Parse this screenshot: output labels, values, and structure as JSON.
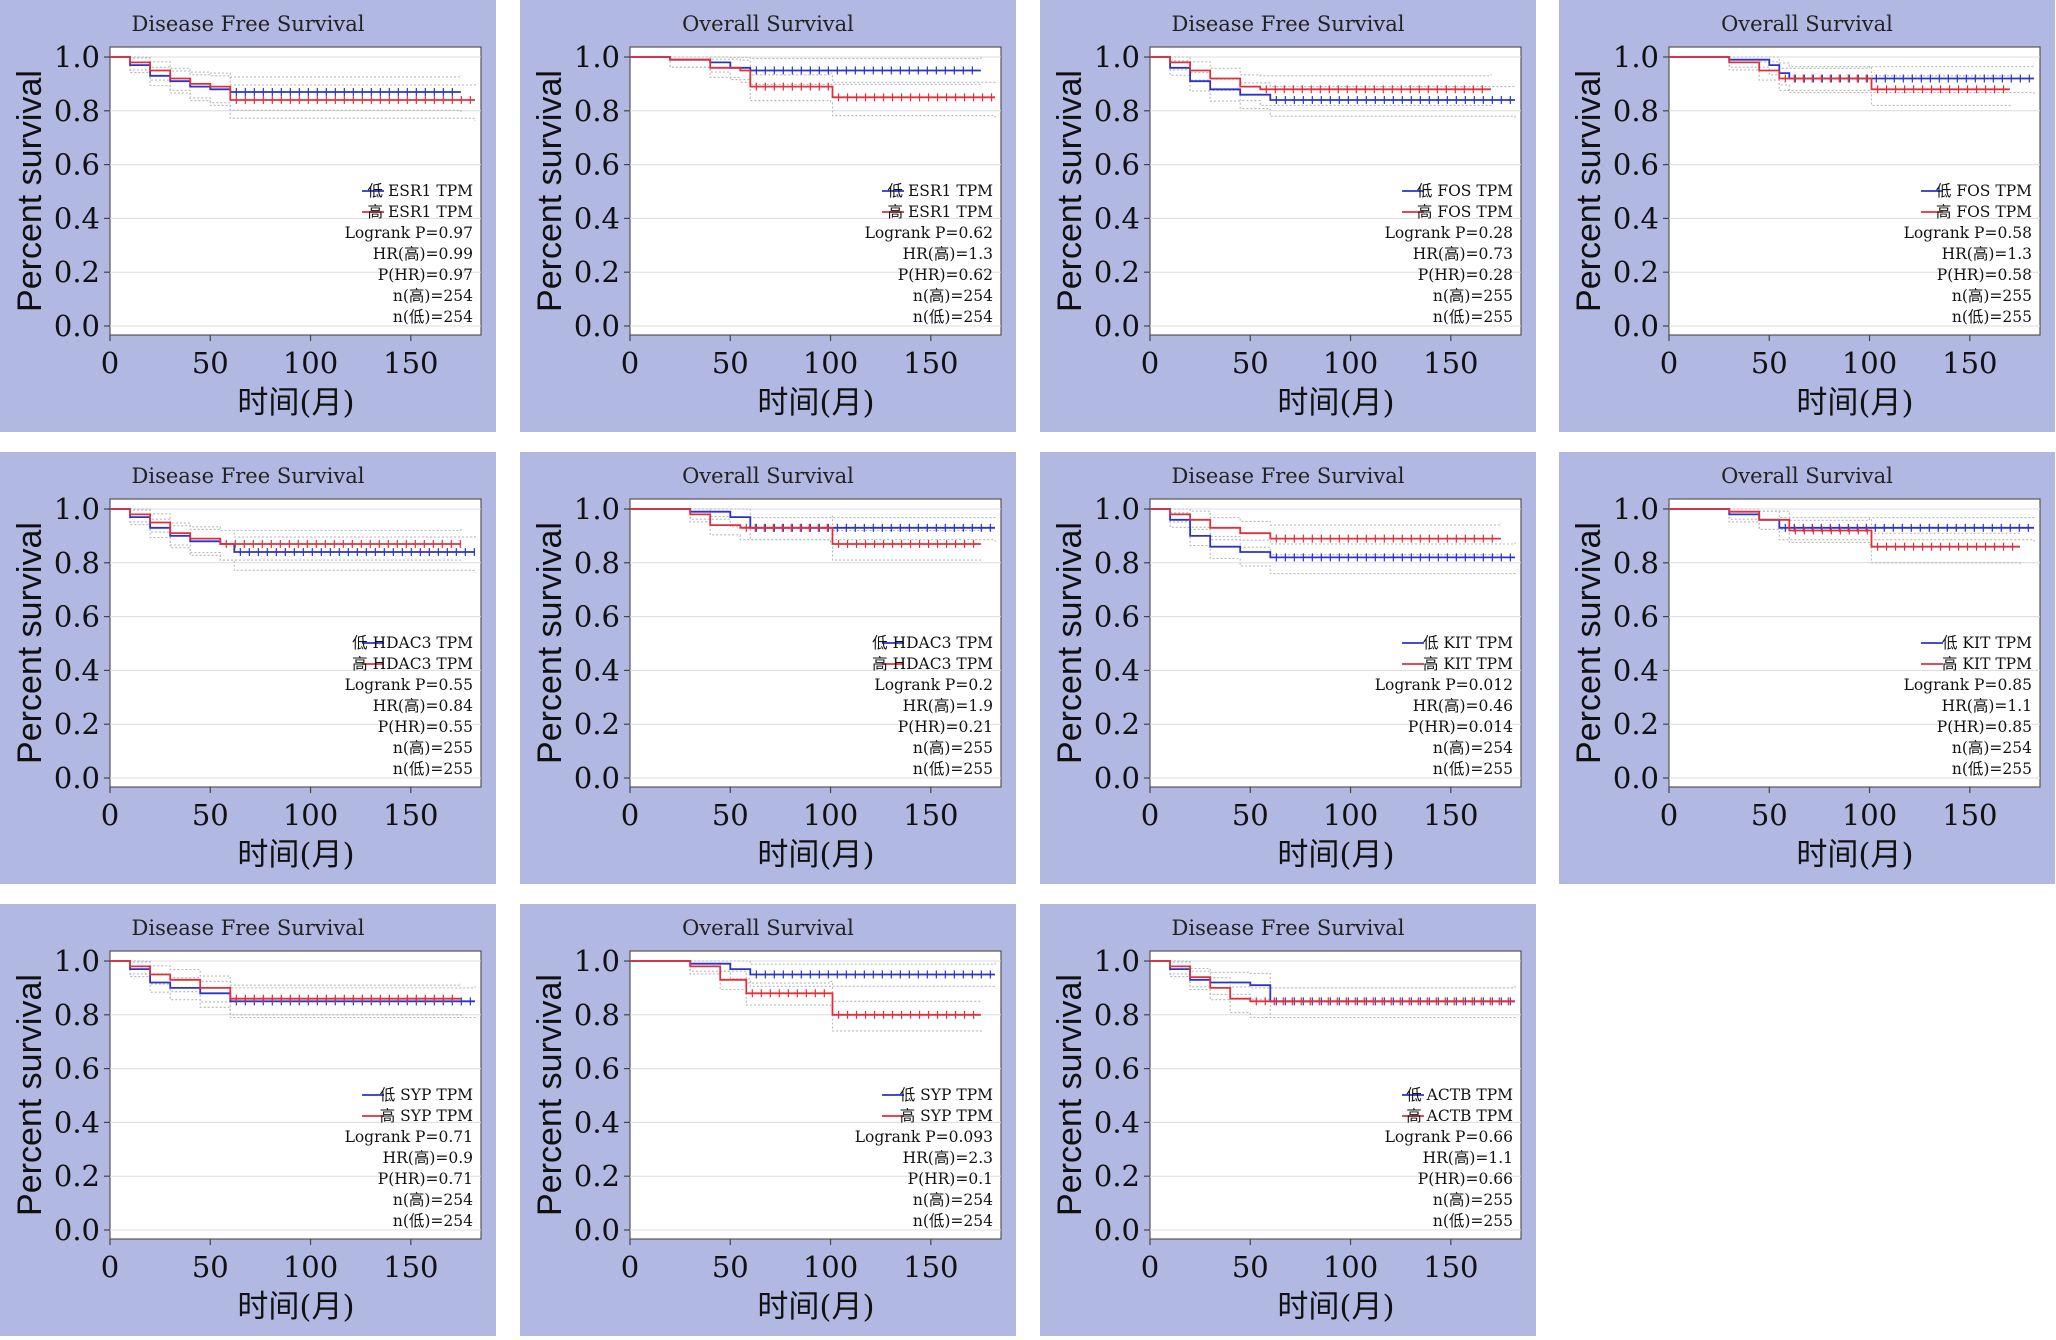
{
  "colors": {
    "low": "#2b34c8",
    "high": "#e0303c",
    "ci": "#b8b8b8",
    "grid": "#dcdcdc",
    "panel_bg": "#b1b8e2"
  },
  "chart_data": [
    {
      "type": "line",
      "title": "Disease Free Survival",
      "ylabel": "Percent survival",
      "xlabel": "时间(月)",
      "xlim": [
        0,
        185
      ],
      "ylim": [
        0,
        1
      ],
      "xticks": [
        "0",
        "50",
        "100",
        "150"
      ],
      "yticks": [
        "0.0",
        "0.2",
        "0.4",
        "0.6",
        "0.8",
        "1.0"
      ],
      "series": [
        {
          "name": "低 ESR1 TPM",
          "values": [
            [
              0,
              1.0
            ],
            [
              10,
              0.97
            ],
            [
              20,
              0.93
            ],
            [
              30,
              0.91
            ],
            [
              40,
              0.89
            ],
            [
              50,
              0.88
            ],
            [
              60,
              0.87
            ],
            [
              175,
              0.87
            ]
          ]
        },
        {
          "name": "高 ESR1 TPM",
          "values": [
            [
              0,
              1.0
            ],
            [
              10,
              0.98
            ],
            [
              20,
              0.95
            ],
            [
              30,
              0.92
            ],
            [
              40,
              0.9
            ],
            [
              50,
              0.89
            ],
            [
              60,
              0.84
            ],
            [
              182,
              0.84
            ]
          ]
        }
      ],
      "stats": [
        "Logrank P=0.97",
        "HR(高)=0.99",
        "P(HR)=0.97",
        "n(高)=254",
        "n(低)=254"
      ]
    },
    {
      "type": "line",
      "title": "Overall Survival",
      "ylabel": "Percent survival",
      "xlabel": "时间(月)",
      "xlim": [
        0,
        185
      ],
      "ylim": [
        0,
        1
      ],
      "xticks": [
        "0",
        "50",
        "100",
        "150"
      ],
      "yticks": [
        "0.0",
        "0.2",
        "0.4",
        "0.6",
        "0.8",
        "1.0"
      ],
      "series": [
        {
          "name": "低 ESR1 TPM",
          "values": [
            [
              0,
              1.0
            ],
            [
              20,
              0.99
            ],
            [
              40,
              0.98
            ],
            [
              50,
              0.96
            ],
            [
              60,
              0.95
            ],
            [
              175,
              0.95
            ]
          ]
        },
        {
          "name": "高 ESR1 TPM",
          "values": [
            [
              0,
              1.0
            ],
            [
              20,
              0.99
            ],
            [
              40,
              0.96
            ],
            [
              55,
              0.95
            ],
            [
              60,
              0.89
            ],
            [
              100,
              0.89
            ],
            [
              101,
              0.85
            ],
            [
              182,
              0.85
            ]
          ]
        }
      ],
      "stats": [
        "Logrank P=0.62",
        "HR(高)=1.3",
        "P(HR)=0.62",
        "n(高)=254",
        "n(低)=254"
      ]
    },
    {
      "type": "line",
      "title": "Disease Free Survival",
      "ylabel": "Percent survival",
      "xlabel": "时间(月)",
      "xlim": [
        0,
        185
      ],
      "ylim": [
        0,
        1
      ],
      "xticks": [
        "0",
        "50",
        "100",
        "150"
      ],
      "yticks": [
        "0.0",
        "0.2",
        "0.4",
        "0.6",
        "0.8",
        "1.0"
      ],
      "series": [
        {
          "name": "低 FOS TPM",
          "values": [
            [
              0,
              1.0
            ],
            [
              10,
              0.96
            ],
            [
              20,
              0.91
            ],
            [
              30,
              0.88
            ],
            [
              45,
              0.86
            ],
            [
              60,
              0.84
            ],
            [
              182,
              0.84
            ]
          ]
        },
        {
          "name": "高 FOS TPM",
          "values": [
            [
              0,
              1.0
            ],
            [
              10,
              0.98
            ],
            [
              20,
              0.95
            ],
            [
              30,
              0.92
            ],
            [
              45,
              0.89
            ],
            [
              55,
              0.88
            ],
            [
              170,
              0.88
            ]
          ]
        }
      ],
      "stats": [
        "Logrank P=0.28",
        "HR(高)=0.73",
        "P(HR)=0.28",
        "n(高)=255",
        "n(低)=255"
      ]
    },
    {
      "type": "line",
      "title": "Overall Survival",
      "ylabel": "Percent survival",
      "xlabel": "时间(月)",
      "xlim": [
        0,
        185
      ],
      "ylim": [
        0,
        1
      ],
      "xticks": [
        "0",
        "50",
        "100",
        "150"
      ],
      "yticks": [
        "0.0",
        "0.2",
        "0.4",
        "0.6",
        "0.8",
        "1.0"
      ],
      "series": [
        {
          "name": "低 FOS TPM",
          "values": [
            [
              0,
              1.0
            ],
            [
              30,
              0.99
            ],
            [
              50,
              0.97
            ],
            [
              55,
              0.94
            ],
            [
              60,
              0.92
            ],
            [
              182,
              0.92
            ]
          ]
        },
        {
          "name": "高 FOS TPM",
          "values": [
            [
              0,
              1.0
            ],
            [
              30,
              0.98
            ],
            [
              45,
              0.95
            ],
            [
              55,
              0.92
            ],
            [
              100,
              0.92
            ],
            [
              101,
              0.88
            ],
            [
              170,
              0.88
            ]
          ]
        }
      ],
      "stats": [
        "Logrank P=0.58",
        "HR(高)=1.3",
        "P(HR)=0.58",
        "n(高)=255",
        "n(低)=255"
      ]
    },
    {
      "type": "line",
      "title": "Disease Free Survival",
      "ylabel": "Percent survival",
      "xlabel": "时间(月)",
      "xlim": [
        0,
        185
      ],
      "ylim": [
        0,
        1
      ],
      "xticks": [
        "0",
        "50",
        "100",
        "150"
      ],
      "yticks": [
        "0.0",
        "0.2",
        "0.4",
        "0.6",
        "0.8",
        "1.0"
      ],
      "series": [
        {
          "name": "低 HDAC3 TPM",
          "values": [
            [
              0,
              1.0
            ],
            [
              10,
              0.97
            ],
            [
              20,
              0.93
            ],
            [
              30,
              0.9
            ],
            [
              40,
              0.88
            ],
            [
              55,
              0.87
            ],
            [
              62,
              0.84
            ],
            [
              182,
              0.84
            ]
          ]
        },
        {
          "name": "高 HDAC3 TPM",
          "values": [
            [
              0,
              1.0
            ],
            [
              10,
              0.98
            ],
            [
              20,
              0.95
            ],
            [
              30,
              0.91
            ],
            [
              40,
              0.89
            ],
            [
              55,
              0.87
            ],
            [
              175,
              0.87
            ]
          ]
        }
      ],
      "stats": [
        "Logrank P=0.55",
        "HR(高)=0.84",
        "P(HR)=0.55",
        "n(高)=255",
        "n(低)=255"
      ]
    },
    {
      "type": "line",
      "title": "Overall Survival",
      "ylabel": "Percent survival",
      "xlabel": "时间(月)",
      "xlim": [
        0,
        185
      ],
      "ylim": [
        0,
        1
      ],
      "xticks": [
        "0",
        "50",
        "100",
        "150"
      ],
      "yticks": [
        "0.0",
        "0.2",
        "0.4",
        "0.6",
        "0.8",
        "1.0"
      ],
      "series": [
        {
          "name": "低 HDAC3 TPM",
          "values": [
            [
              0,
              1.0
            ],
            [
              30,
              0.99
            ],
            [
              50,
              0.97
            ],
            [
              60,
              0.93
            ],
            [
              182,
              0.93
            ]
          ]
        },
        {
          "name": "高 HDAC3 TPM",
          "values": [
            [
              0,
              1.0
            ],
            [
              30,
              0.98
            ],
            [
              40,
              0.94
            ],
            [
              55,
              0.93
            ],
            [
              100,
              0.93
            ],
            [
              101,
              0.87
            ],
            [
              175,
              0.87
            ]
          ]
        }
      ],
      "stats": [
        "Logrank P=0.2",
        "HR(高)=1.9",
        "P(HR)=0.21",
        "n(高)=255",
        "n(低)=255"
      ]
    },
    {
      "type": "line",
      "title": "Disease Free Survival",
      "ylabel": "Percent survival",
      "xlabel": "时间(月)",
      "xlim": [
        0,
        185
      ],
      "ylim": [
        0,
        1
      ],
      "xticks": [
        "0",
        "50",
        "100",
        "150"
      ],
      "yticks": [
        "0.0",
        "0.2",
        "0.4",
        "0.6",
        "0.8",
        "1.0"
      ],
      "series": [
        {
          "name": "低 KIT TPM",
          "values": [
            [
              0,
              1.0
            ],
            [
              10,
              0.96
            ],
            [
              20,
              0.9
            ],
            [
              30,
              0.86
            ],
            [
              45,
              0.84
            ],
            [
              60,
              0.82
            ],
            [
              182,
              0.82
            ]
          ]
        },
        {
          "name": "高 KIT TPM",
          "values": [
            [
              0,
              1.0
            ],
            [
              10,
              0.98
            ],
            [
              20,
              0.96
            ],
            [
              30,
              0.93
            ],
            [
              45,
              0.91
            ],
            [
              60,
              0.89
            ],
            [
              175,
              0.89
            ]
          ]
        }
      ],
      "stats": [
        "Logrank P=0.012",
        "HR(高)=0.46",
        "P(HR)=0.014",
        "n(高)=254",
        "n(低)=255"
      ]
    },
    {
      "type": "line",
      "title": "Overall Survival",
      "ylabel": "Percent survival",
      "xlabel": "时间(月)",
      "xlim": [
        0,
        185
      ],
      "ylim": [
        0,
        1
      ],
      "xticks": [
        "0",
        "50",
        "100",
        "150"
      ],
      "yticks": [
        "0.0",
        "0.2",
        "0.4",
        "0.6",
        "0.8",
        "1.0"
      ],
      "series": [
        {
          "name": "低 KIT TPM",
          "values": [
            [
              0,
              1.0
            ],
            [
              30,
              0.98
            ],
            [
              45,
              0.96
            ],
            [
              55,
              0.93
            ],
            [
              182,
              0.93
            ]
          ]
        },
        {
          "name": "高 KIT TPM",
          "values": [
            [
              0,
              1.0
            ],
            [
              30,
              0.99
            ],
            [
              45,
              0.96
            ],
            [
              60,
              0.92
            ],
            [
              100,
              0.92
            ],
            [
              101,
              0.86
            ],
            [
              175,
              0.86
            ]
          ]
        }
      ],
      "stats": [
        "Logrank P=0.85",
        "HR(高)=1.1",
        "P(HR)=0.85",
        "n(高)=254",
        "n(低)=255"
      ]
    },
    {
      "type": "line",
      "title": "Disease Free Survival",
      "ylabel": "Percent survival",
      "xlabel": "时间(月)",
      "xlim": [
        0,
        185
      ],
      "ylim": [
        0,
        1
      ],
      "xticks": [
        "0",
        "50",
        "100",
        "150"
      ],
      "yticks": [
        "0.0",
        "0.2",
        "0.4",
        "0.6",
        "0.8",
        "1.0"
      ],
      "series": [
        {
          "name": "低 SYP TPM",
          "values": [
            [
              0,
              1.0
            ],
            [
              10,
              0.97
            ],
            [
              20,
              0.92
            ],
            [
              30,
              0.9
            ],
            [
              45,
              0.88
            ],
            [
              60,
              0.85
            ],
            [
              182,
              0.85
            ]
          ]
        },
        {
          "name": "高 SYP TPM",
          "values": [
            [
              0,
              1.0
            ],
            [
              10,
              0.98
            ],
            [
              20,
              0.95
            ],
            [
              30,
              0.93
            ],
            [
              45,
              0.9
            ],
            [
              60,
              0.86
            ],
            [
              175,
              0.86
            ]
          ]
        }
      ],
      "stats": [
        "Logrank P=0.71",
        "HR(高)=0.9",
        "P(HR)=0.71",
        "n(高)=254",
        "n(低)=254"
      ]
    },
    {
      "type": "line",
      "title": "Overall Survival",
      "ylabel": "Percent survival",
      "xlabel": "时间(月)",
      "xlim": [
        0,
        185
      ],
      "ylim": [
        0,
        1
      ],
      "xticks": [
        "0",
        "50",
        "100",
        "150"
      ],
      "yticks": [
        "0.0",
        "0.2",
        "0.4",
        "0.6",
        "0.8",
        "1.0"
      ],
      "series": [
        {
          "name": "低 SYP TPM",
          "values": [
            [
              0,
              1.0
            ],
            [
              30,
              0.99
            ],
            [
              50,
              0.97
            ],
            [
              60,
              0.95
            ],
            [
              182,
              0.95
            ]
          ]
        },
        {
          "name": "高 SYP TPM",
          "values": [
            [
              0,
              1.0
            ],
            [
              30,
              0.98
            ],
            [
              45,
              0.93
            ],
            [
              58,
              0.88
            ],
            [
              100,
              0.88
            ],
            [
              101,
              0.8
            ],
            [
              175,
              0.8
            ]
          ]
        }
      ],
      "stats": [
        "Logrank P=0.093",
        "HR(高)=2.3",
        "P(HR)=0.1",
        "n(高)=254",
        "n(低)=254"
      ]
    },
    {
      "type": "line",
      "title": "Disease Free Survival",
      "ylabel": "Percent survival",
      "xlabel": "时间(月)",
      "xlim": [
        0,
        185
      ],
      "ylim": [
        0,
        1
      ],
      "xticks": [
        "0",
        "50",
        "100",
        "150"
      ],
      "yticks": [
        "0.0",
        "0.2",
        "0.4",
        "0.6",
        "0.8",
        "1.0"
      ],
      "series": [
        {
          "name": "低 ACTB TPM",
          "values": [
            [
              0,
              1.0
            ],
            [
              10,
              0.97
            ],
            [
              20,
              0.93
            ],
            [
              30,
              0.92
            ],
            [
              50,
              0.91
            ],
            [
              60,
              0.85
            ],
            [
              182,
              0.85
            ]
          ]
        },
        {
          "name": "高 ACTB TPM",
          "values": [
            [
              0,
              1.0
            ],
            [
              10,
              0.98
            ],
            [
              20,
              0.94
            ],
            [
              30,
              0.9
            ],
            [
              40,
              0.86
            ],
            [
              50,
              0.85
            ],
            [
              182,
              0.85
            ]
          ]
        }
      ],
      "stats": [
        "Logrank P=0.66",
        "HR(高)=1.1",
        "P(HR)=0.66",
        "n(高)=255",
        "n(低)=255"
      ]
    }
  ]
}
